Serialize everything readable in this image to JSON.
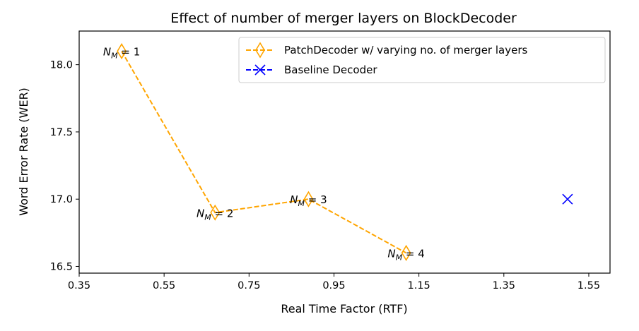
{
  "chart_data": {
    "type": "line",
    "title": "Effect of number of merger layers on BlockDecoder",
    "xlabel": "Real Time Factor (RTF)",
    "ylabel": "Word Error Rate (WER)",
    "xlim": [
      0.35,
      1.6
    ],
    "ylim": [
      16.45,
      18.25
    ],
    "xticks": [
      "0.35",
      "0.55",
      "0.75",
      "0.95",
      "1.15",
      "1.35",
      "1.55"
    ],
    "yticks": [
      "16.5",
      "17.0",
      "17.5",
      "18.0"
    ],
    "grid": false,
    "legend_position": "top-right",
    "series": [
      {
        "name": "PatchDecoder w/ varying no. of merger layers",
        "color": "#FFA500",
        "marker": "thin-diamond",
        "linestyle": "dashed",
        "x": [
          0.45,
          0.67,
          0.89,
          1.12
        ],
        "y": [
          18.1,
          16.9,
          17.0,
          16.6
        ],
        "point_labels": [
          {
            "text": "N",
            "sub": "M",
            "rest": " = 1"
          },
          {
            "text": "N",
            "sub": "M",
            "rest": " = 2"
          },
          {
            "text": "N",
            "sub": "M",
            "rest": " = 3"
          },
          {
            "text": "N",
            "sub": "M",
            "rest": " = 4"
          }
        ]
      },
      {
        "name": "Baseline Decoder",
        "color": "#0000FF",
        "marker": "x",
        "linestyle": "dashed",
        "x": [
          1.5
        ],
        "y": [
          17.0
        ]
      }
    ]
  }
}
